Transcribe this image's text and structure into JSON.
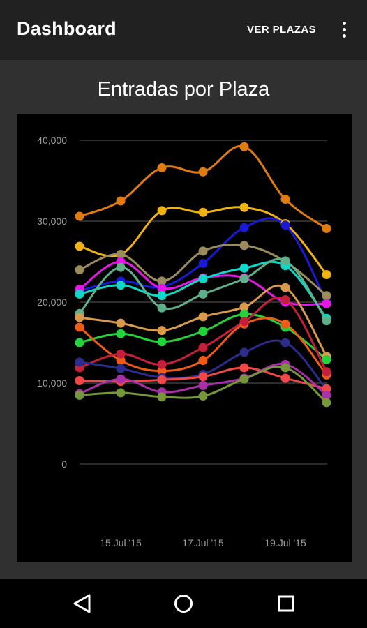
{
  "app_bar": {
    "title": "Dashboard",
    "action_label": "VER PLAZAS",
    "overflow_icon": "more-vert-icon"
  },
  "chart_section": {
    "title": "Entradas por Plaza"
  },
  "chart_data": {
    "type": "line",
    "title": "Entradas por Plaza",
    "xlabel": "",
    "ylabel": "",
    "x": [
      "14.Jul '15",
      "15.Jul '15",
      "16.Jul '15",
      "17.Jul '15",
      "18.Jul '15",
      "19.Jul '15",
      "20.Jul '15"
    ],
    "x_tick_labels": [
      "15.Jul '15",
      "17.Jul '15",
      "19.Jul '15"
    ],
    "y_tick_labels": [
      "0",
      "10,000",
      "20,000",
      "30,000",
      "40,000"
    ],
    "ylim": [
      0,
      40000
    ],
    "grid": true,
    "legend": "none",
    "series": [
      {
        "color": "#e07b12",
        "values": [
          30600,
          32500,
          36600,
          36100,
          39200,
          32700,
          29100
        ]
      },
      {
        "color": "#f0b310",
        "values": [
          26900,
          25900,
          31300,
          31100,
          31700,
          29700,
          23400
        ]
      },
      {
        "color": "#1a1ad6",
        "values": [
          21400,
          22600,
          21900,
          24800,
          29200,
          29500,
          20000
        ]
      },
      {
        "color": "#9c8c5c",
        "values": [
          24000,
          25900,
          22600,
          26300,
          27000,
          25000,
          20800
        ]
      },
      {
        "color": "#e617e6",
        "values": [
          21600,
          25000,
          21700,
          23000,
          23000,
          20000,
          19800
        ]
      },
      {
        "color": "#10d8c8",
        "values": [
          21000,
          22100,
          20800,
          22900,
          24200,
          24500,
          18000
        ]
      },
      {
        "color": "#5fb08a",
        "values": [
          18600,
          24300,
          19300,
          21000,
          22900,
          25100,
          17700
        ]
      },
      {
        "color": "#d99a4c",
        "values": [
          18100,
          17400,
          16500,
          18200,
          19400,
          21800,
          13300
        ]
      },
      {
        "color": "#22d43a",
        "values": [
          15000,
          16100,
          15100,
          16400,
          18500,
          16900,
          12900
        ]
      },
      {
        "color": "#f05a14",
        "values": [
          16900,
          12800,
          11500,
          12800,
          17300,
          17300,
          11000
        ]
      },
      {
        "color": "#c61f3c",
        "values": [
          11900,
          13600,
          12300,
          14400,
          17600,
          20300,
          11400
        ]
      },
      {
        "color": "#2c2c8c",
        "values": [
          12600,
          11800,
          10700,
          11100,
          13800,
          15000,
          9200
        ]
      },
      {
        "color": "#f04848",
        "values": [
          10300,
          10200,
          10400,
          10800,
          11900,
          10600,
          9300
        ]
      },
      {
        "color": "#a830a8",
        "values": [
          8700,
          10500,
          8900,
          9700,
          10600,
          12300,
          8500
        ]
      },
      {
        "color": "#76963a",
        "values": [
          8500,
          8800,
          8300,
          8400,
          10500,
          11900,
          7600
        ]
      }
    ]
  },
  "nav": {
    "back_icon": "back-triangle-icon",
    "home_icon": "home-circle-icon",
    "recents_icon": "recents-square-icon"
  }
}
